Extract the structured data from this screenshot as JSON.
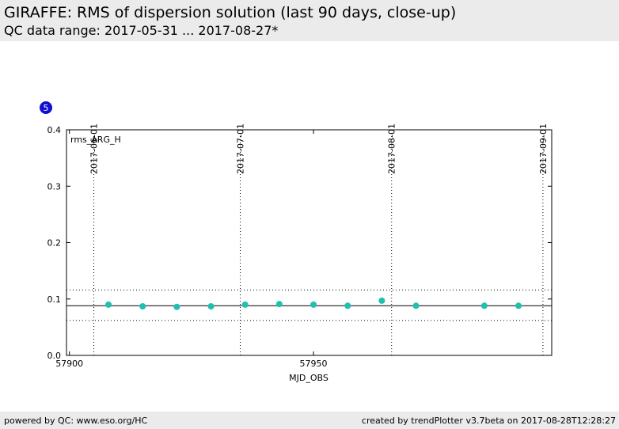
{
  "header": {
    "title": "GIRAFFE: RMS of dispersion solution (last 90 days, close-up)",
    "subtitle": "QC data range: 2017-05-31 ... 2017-08-27*"
  },
  "badge": "5",
  "chart_data": {
    "type": "scatter",
    "label": "rms_ARG_H",
    "x_label": "MJD_OBS",
    "x": [
      57908,
      57915,
      57922,
      57929,
      57936,
      57943,
      57950,
      57957,
      57964,
      57971,
      57985,
      57992
    ],
    "series": [
      {
        "name": "rms_ARG_H",
        "color": "#20c0b0",
        "values": [
          0.09,
          0.087,
          0.086,
          0.087,
          0.09,
          0.091,
          0.09,
          0.088,
          0.097,
          0.088,
          0.088,
          0.088
        ]
      }
    ],
    "xlim": [
      57899.4,
      57998.8
    ],
    "xticks": [
      57900,
      57950
    ],
    "ylim": [
      0,
      0.4
    ],
    "yticks": [
      {
        "value": 0,
        "label": "0.0"
      },
      0.1,
      0.2,
      0.3,
      0.4
    ],
    "date_markers": [
      {
        "value": 57905,
        "label": "2017-06-01"
      },
      {
        "value": 57935,
        "label": "2017-07-01"
      },
      {
        "value": 57966,
        "label": "2017-08-01"
      },
      {
        "value": 57997,
        "label": "2017-09-01"
      }
    ],
    "reference_lines": {
      "mean": 0.088,
      "upper": 0.116,
      "lower": 0.062
    }
  },
  "footer": {
    "left": "powered by QC: www.eso.org/HC",
    "right": "created by trendPlotter v3.7beta on 2017-08-28T12:28:27"
  }
}
